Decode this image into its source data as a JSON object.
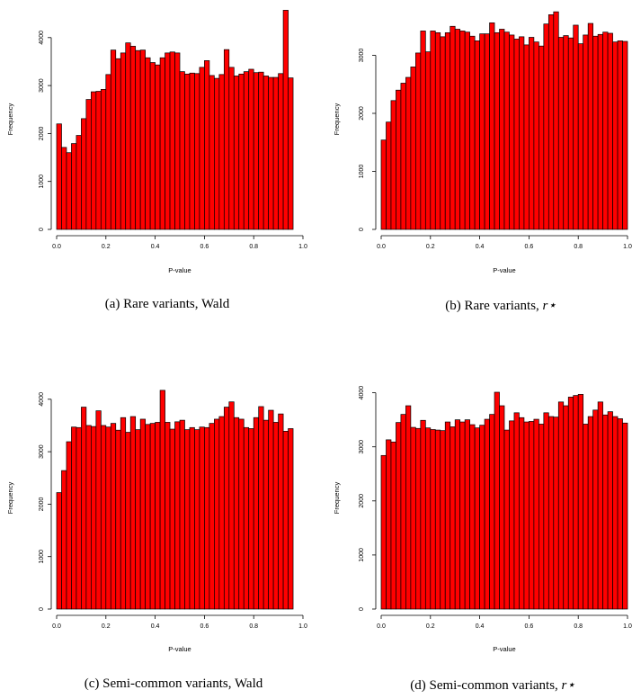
{
  "chart_data": [
    {
      "type": "bar",
      "caption": {
        "tag": "(a)",
        "text": "Rare variants, Wald",
        "sym": ""
      },
      "xlabel": "P-value",
      "ylabel": "Frequency",
      "xlim": [
        0,
        1
      ],
      "ylim": [
        0,
        4600
      ],
      "xticks": [
        "0.0",
        "0.2",
        "0.4",
        "0.6",
        "0.8",
        "1.0"
      ],
      "yticks": [
        "0",
        "1000",
        "2000",
        "3000",
        "4000"
      ],
      "bar_color": "#ff0000",
      "bin_width": 0.02,
      "values": [
        2200,
        1710,
        1600,
        1790,
        1960,
        2310,
        2710,
        2870,
        2880,
        2920,
        3230,
        3740,
        3560,
        3680,
        3890,
        3820,
        3730,
        3740,
        3580,
        3480,
        3430,
        3580,
        3680,
        3700,
        3680,
        3290,
        3240,
        3260,
        3250,
        3380,
        3520,
        3210,
        3150,
        3230,
        3750,
        3380,
        3200,
        3240,
        3290,
        3340,
        3270,
        3280,
        3200,
        3170,
        3170,
        3250,
        4570,
        3160
      ]
    },
    {
      "type": "bar",
      "caption": {
        "tag": "(b)",
        "text": "Rare variants, ",
        "sym": "r⋆"
      },
      "xlabel": "P-value",
      "ylabel": "Frequency",
      "xlim": [
        0,
        1
      ],
      "ylim": [
        0,
        3800
      ],
      "xticks": [
        "0.0",
        "0.2",
        "0.4",
        "0.6",
        "0.8",
        "1.0"
      ],
      "yticks": [
        "0",
        "1000",
        "2000",
        "3000"
      ],
      "bar_color": "#ff0000",
      "bin_width": 0.02,
      "values": [
        1540,
        1850,
        2220,
        2400,
        2520,
        2620,
        2800,
        3040,
        3420,
        3060,
        3420,
        3390,
        3320,
        3390,
        3500,
        3450,
        3420,
        3400,
        3330,
        3250,
        3370,
        3370,
        3560,
        3390,
        3450,
        3400,
        3350,
        3280,
        3320,
        3180,
        3310,
        3230,
        3160,
        3540,
        3700,
        3750,
        3310,
        3340,
        3300,
        3520,
        3200,
        3350,
        3550,
        3330,
        3360,
        3400,
        3380,
        3230,
        3250,
        3240
      ]
    },
    {
      "type": "bar",
      "caption": {
        "tag": "(c)",
        "text": "Semi-common variants, Wald",
        "sym": ""
      },
      "xlabel": "P-value",
      "ylabel": "Frequency",
      "xlim": [
        0,
        1
      ],
      "ylim": [
        0,
        4200
      ],
      "xticks": [
        "0.0",
        "0.2",
        "0.4",
        "0.6",
        "0.8",
        "1.0"
      ],
      "yticks": [
        "0",
        "1000",
        "2000",
        "3000",
        "4000"
      ],
      "bar_color": "#ff0000",
      "bin_width": 0.02,
      "values": [
        2220,
        2640,
        3190,
        3470,
        3460,
        3850,
        3500,
        3480,
        3780,
        3500,
        3470,
        3540,
        3410,
        3650,
        3370,
        3670,
        3420,
        3620,
        3520,
        3540,
        3560,
        4170,
        3560,
        3430,
        3570,
        3600,
        3420,
        3460,
        3420,
        3470,
        3460,
        3540,
        3620,
        3670,
        3850,
        3950,
        3650,
        3620,
        3460,
        3440,
        3650,
        3860,
        3600,
        3790,
        3560,
        3720,
        3390,
        3440
      ]
    },
    {
      "type": "bar",
      "caption": {
        "tag": "(d)",
        "text": "Semi-common variants, ",
        "sym": "r⋆"
      },
      "xlabel": "P-value",
      "ylabel": "Frequency",
      "xlim": [
        0,
        1
      ],
      "ylim": [
        0,
        4100
      ],
      "xticks": [
        "0.0",
        "0.2",
        "0.4",
        "0.6",
        "0.8",
        "1.0"
      ],
      "yticks": [
        "0",
        "1000",
        "2000",
        "3000",
        "4000"
      ],
      "bar_color": "#ff0000",
      "bin_width": 0.02,
      "values": [
        2840,
        3130,
        3090,
        3450,
        3600,
        3760,
        3360,
        3340,
        3490,
        3350,
        3320,
        3310,
        3300,
        3460,
        3370,
        3500,
        3460,
        3500,
        3410,
        3350,
        3400,
        3510,
        3600,
        4010,
        3760,
        3310,
        3480,
        3630,
        3540,
        3460,
        3470,
        3510,
        3420,
        3630,
        3560,
        3550,
        3830,
        3760,
        3920,
        3950,
        3970,
        3420,
        3560,
        3680,
        3830,
        3590,
        3650,
        3560,
        3520,
        3440
      ]
    }
  ]
}
